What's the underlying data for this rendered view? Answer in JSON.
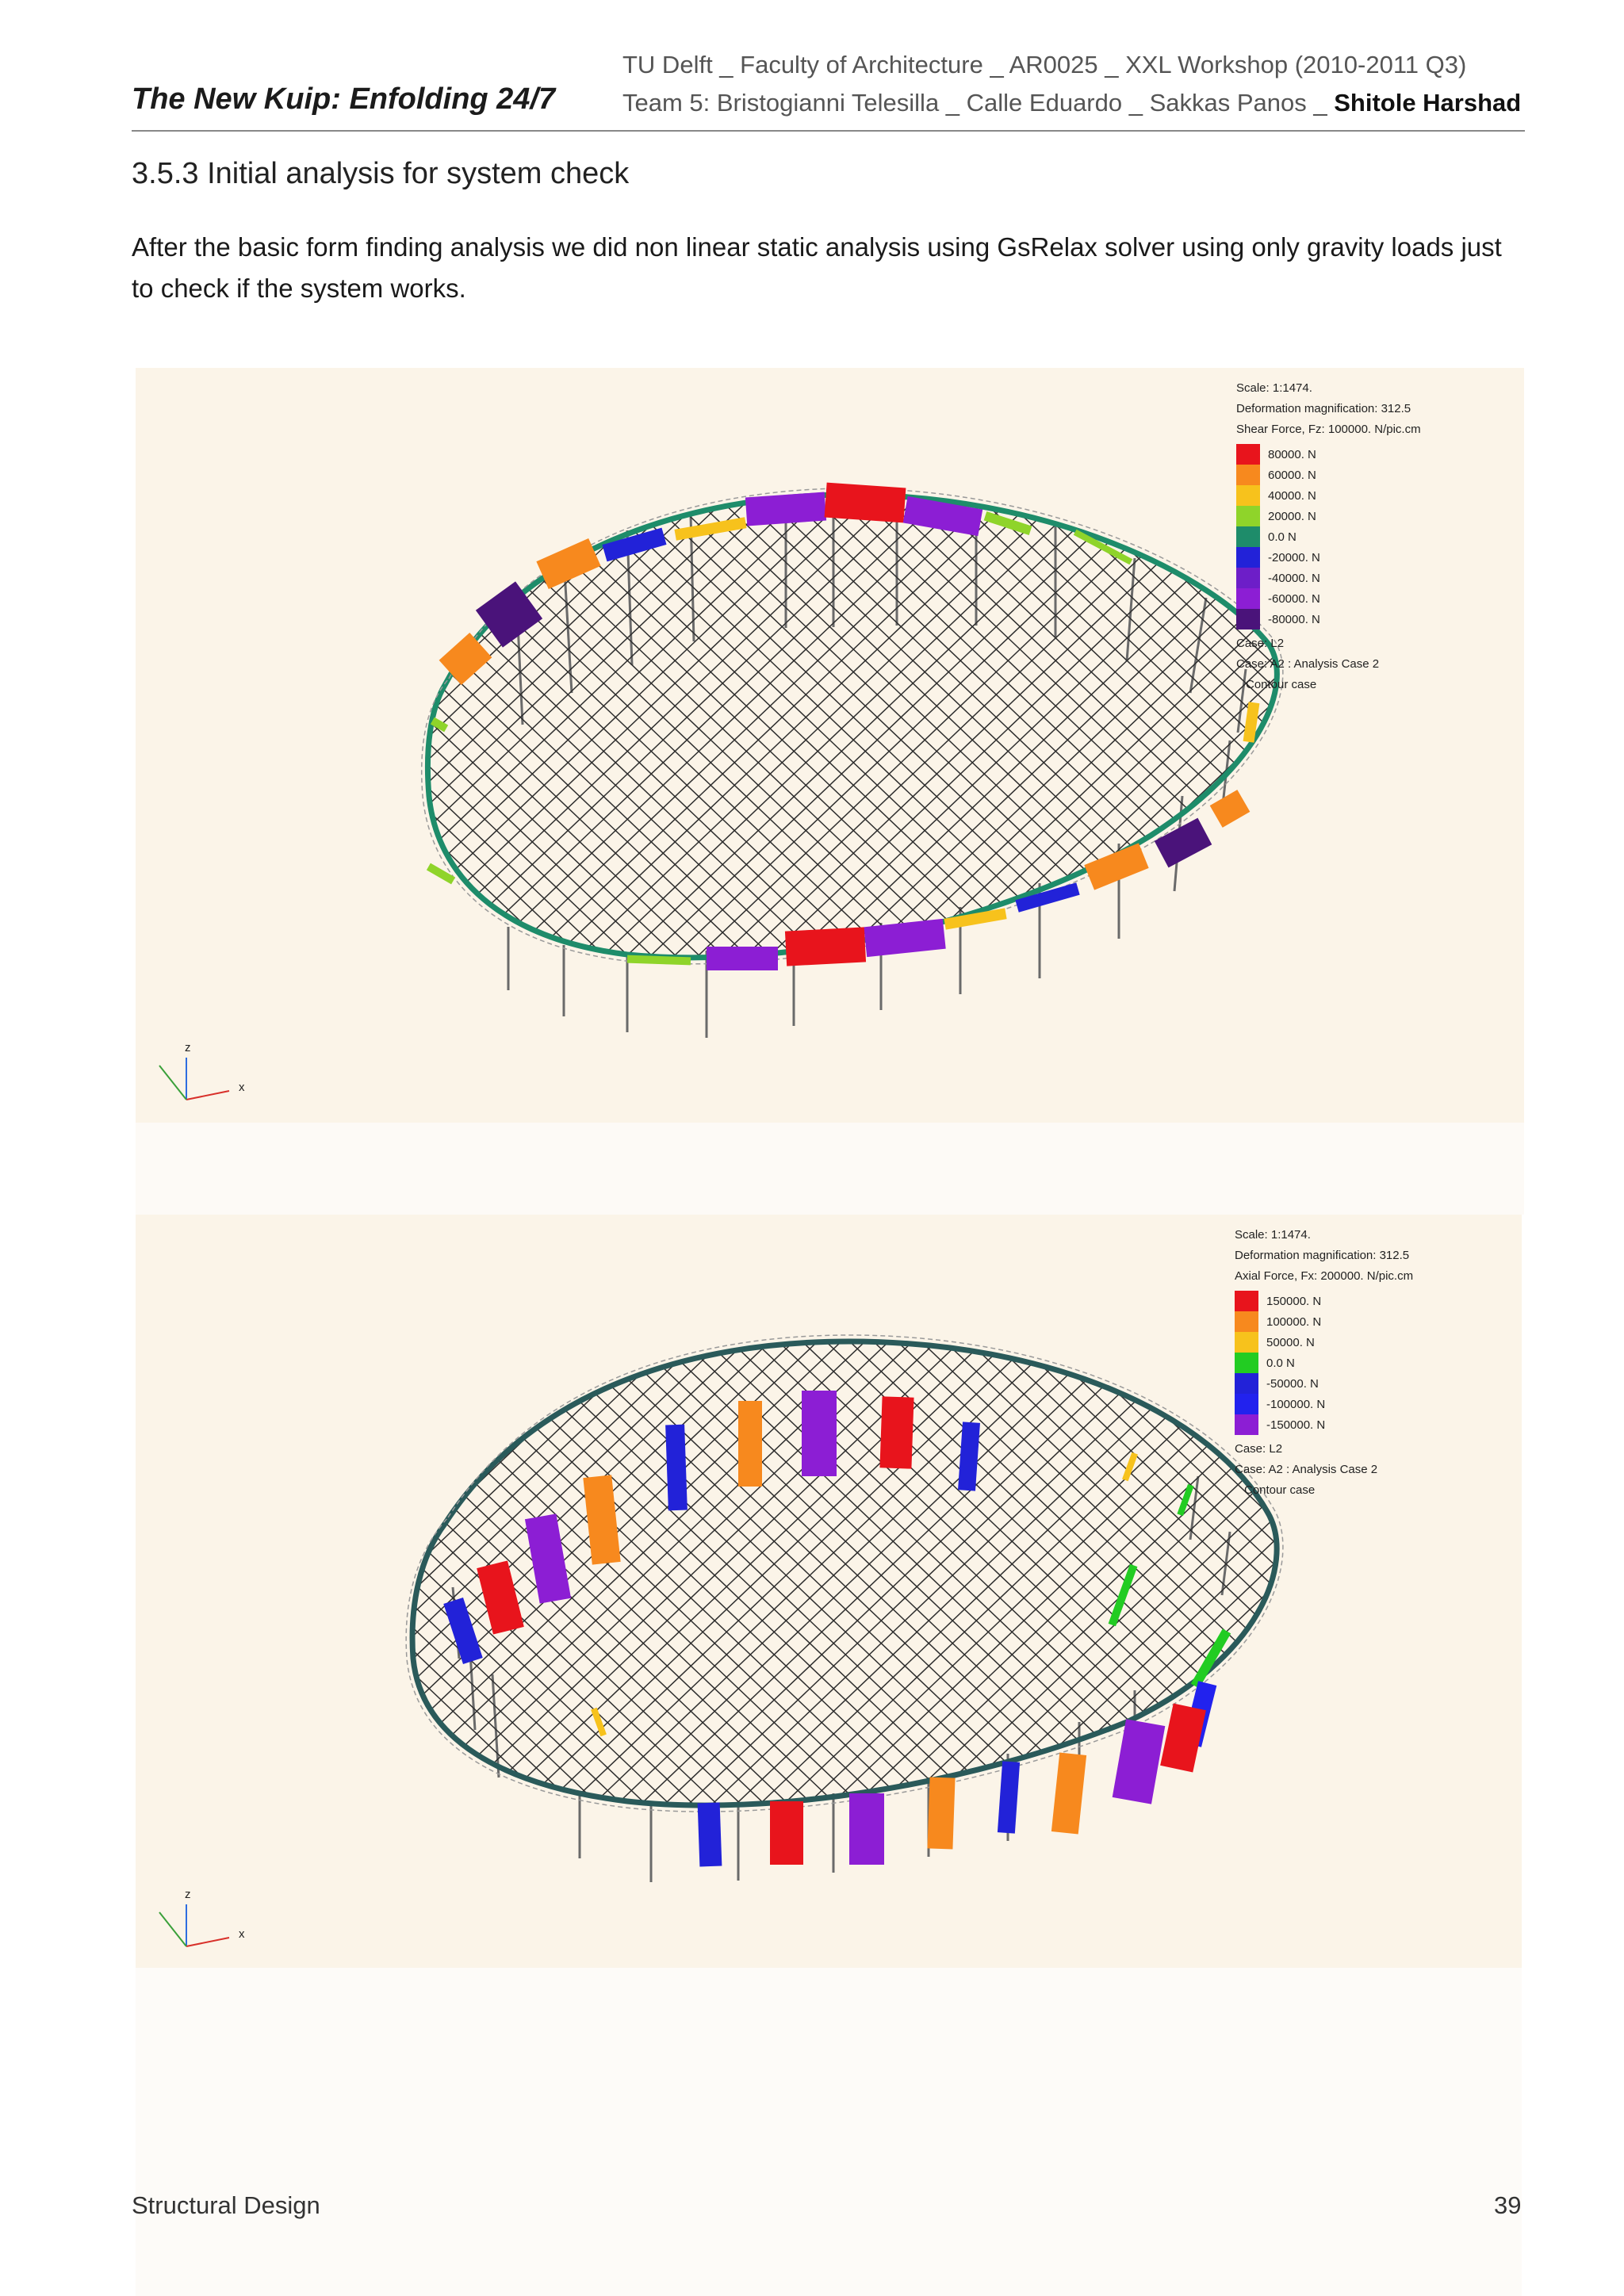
{
  "header": {
    "title": "The New Kuip: Enfolding 24/7",
    "line1": "TU Delft _ Faculty of Architecture _ AR0025 _ XXL Workshop  (2010-2011 Q3)",
    "line2_prefix": "Team 5: Bristogianni Telesilla _ Calle Eduardo _ Sakkas Panos _ ",
    "line2_bold": "Shitole Harshad"
  },
  "section": {
    "heading": "3.5.3 Initial analysis for  system check",
    "body": "After the basic form finding analysis we did non linear static analysis using GsRelax solver using only gravity loads just to check if the system works."
  },
  "figure1": {
    "scale": "Scale: 1:1474.",
    "magnification": "Deformation magnification: 312.5",
    "force": "Shear Force, Fz: 100000. N/pic.cm",
    "legend": [
      {
        "label": "80000. N",
        "color": "#e8141c"
      },
      {
        "label": "60000. N",
        "color": "#f7891e"
      },
      {
        "label": "40000. N",
        "color": "#f7c21c"
      },
      {
        "label": "20000. N",
        "color": "#8fd42a"
      },
      {
        "label": "0.0 N",
        "color": "#1e8c6a"
      },
      {
        "label": "-20000. N",
        "color": "#2222d8"
      },
      {
        "label": "-40000. N",
        "color": "#6d1ec8"
      },
      {
        "label": "-60000. N",
        "color": "#8c1ed4"
      },
      {
        "label": "-80000. N",
        "color": "#4a137a"
      }
    ],
    "case": "Case: L2",
    "analysis": "Case: A2 : Analysis Case 2",
    "contour": "Contour case",
    "axis_z": "z",
    "axis_x": "x"
  },
  "figure2": {
    "scale": "Scale: 1:1474.",
    "magnification": "Deformation magnification: 312.5",
    "force": "Axial Force, Fx: 200000. N/pic.cm",
    "legend": [
      {
        "label": "150000. N",
        "color": "#e8141c"
      },
      {
        "label": "100000. N",
        "color": "#f7891e"
      },
      {
        "label": "50000. N",
        "color": "#f7c21c"
      },
      {
        "label": "0.0 N",
        "color": "#22cc22"
      },
      {
        "label": "-50000. N",
        "color": "#2222d8"
      },
      {
        "label": "-100000. N",
        "color": "#2222ee"
      },
      {
        "label": "-150000. N",
        "color": "#8c1ed4"
      }
    ],
    "case": "Case: L2",
    "analysis": "Case: A2 : Analysis Case 2",
    "contour": "Contour case",
    "axis_z": "z",
    "axis_x": "x"
  },
  "footer": {
    "section": "Structural Design",
    "page": "39"
  }
}
